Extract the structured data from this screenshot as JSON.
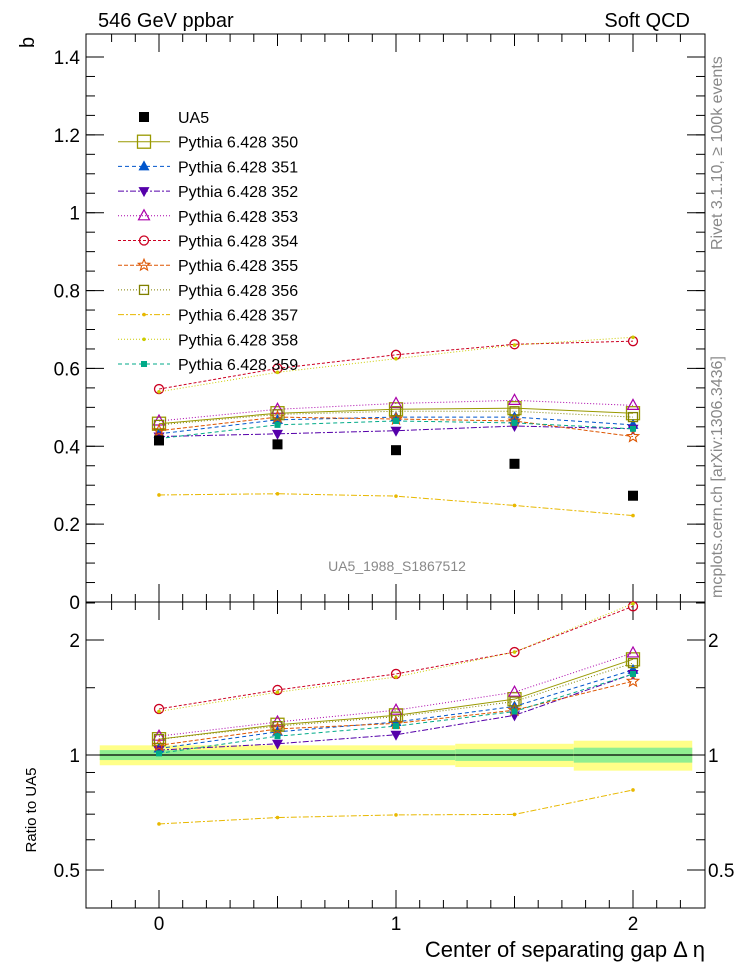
{
  "header": {
    "left": "546 GeV ppbar",
    "right": "Soft QCD"
  },
  "side_text": {
    "top": "Rivet 3.1.10, ≥ 100k events",
    "bottom": "mcplots.cern.ch [arXiv:1306.3436]"
  },
  "watermark": "UA5_1988_S1867512",
  "chart_data": [
    {
      "type": "line",
      "panel": "main",
      "ylabel": "b",
      "xlabel": "",
      "x": [
        0,
        0.5,
        1,
        1.5,
        2
      ],
      "xlim": [
        -0.3,
        2.3
      ],
      "ylim": [
        0,
        1.45
      ],
      "yticks": [
        0,
        0.2,
        0.4,
        0.6,
        0.8,
        1,
        1.2,
        1.4
      ],
      "ytick_labels": [
        "0",
        "0.2",
        "0.4",
        "0.6",
        "0.8",
        "1",
        "1.2",
        "1.4"
      ],
      "legend_position": "top-left",
      "data_series": {
        "name": "UA5",
        "color": "#000000",
        "values": [
          0.415,
          0.405,
          0.39,
          0.355,
          0.273
        ]
      },
      "series": [
        {
          "name": "Pythia 6.428 350",
          "color": "#999900",
          "marker": "square-open-large",
          "dash": "",
          "values": [
            0.458,
            0.485,
            0.495,
            0.498,
            0.485
          ]
        },
        {
          "name": "Pythia 6.428 351",
          "color": "#0055cc",
          "marker": "triangle-up-filled",
          "dash": "4,3",
          "values": [
            0.432,
            0.468,
            0.475,
            0.475,
            0.455
          ]
        },
        {
          "name": "Pythia 6.428 352",
          "color": "#5500aa",
          "marker": "triangle-down-filled",
          "dash": "6,2,2,2",
          "values": [
            0.425,
            0.432,
            0.44,
            0.452,
            0.445
          ]
        },
        {
          "name": "Pythia 6.428 353",
          "color": "#aa00aa",
          "marker": "triangle-up-open",
          "dash": "1,2",
          "values": [
            0.465,
            0.495,
            0.51,
            0.518,
            0.505
          ]
        },
        {
          "name": "Pythia 6.428 354",
          "color": "#cc0022",
          "marker": "circle-open",
          "dash": "3,2",
          "values": [
            0.547,
            0.6,
            0.635,
            0.662,
            0.67
          ]
        },
        {
          "name": "Pythia 6.428 355",
          "color": "#dd5500",
          "marker": "star-open",
          "dash": "4,2",
          "values": [
            0.44,
            0.475,
            0.47,
            0.465,
            0.425
          ]
        },
        {
          "name": "Pythia 6.428 356",
          "color": "#808000",
          "marker": "square-open",
          "dash": "1,2",
          "values": [
            0.455,
            0.482,
            0.49,
            0.49,
            0.475
          ]
        },
        {
          "name": "Pythia 6.428 357",
          "color": "#e8b800",
          "marker": "dot",
          "dash": "6,2,2,2",
          "values": [
            0.275,
            0.278,
            0.272,
            0.248,
            0.222
          ]
        },
        {
          "name": "Pythia 6.428 358",
          "color": "#cccc00",
          "marker": "dot",
          "dash": "1,2",
          "values": [
            0.54,
            0.59,
            0.625,
            0.66,
            0.68
          ]
        },
        {
          "name": "Pythia 6.428 359",
          "color": "#00aa88",
          "marker": "square-filled-small",
          "dash": "4,3",
          "values": [
            0.42,
            0.455,
            0.465,
            0.46,
            0.445
          ]
        }
      ]
    },
    {
      "type": "line",
      "panel": "ratio",
      "ylabel": "Ratio to UA5",
      "xlabel": "Center of separating gap Δ η",
      "x": [
        0,
        0.5,
        1,
        1.5,
        2
      ],
      "xlim": [
        -0.3,
        2.3
      ],
      "ylim": [
        0.4,
        2.5
      ],
      "log_scale_y": true,
      "xticks": [
        0,
        0.5,
        1,
        1.5,
        2
      ],
      "xtick_labels": [
        "0",
        "1",
        "2"
      ],
      "ytick_labels": [
        "0.5",
        "1",
        "2"
      ],
      "bands": {
        "inner_color": "#90ee90",
        "outer_color": "#ffff88",
        "x_edges": [
          -0.25,
          1.25,
          1.75,
          2.25
        ],
        "inner_halfwidth": [
          0.03,
          0.035,
          0.045
        ],
        "outer_halfwidth": [
          0.06,
          0.07,
          0.09
        ]
      },
      "series": [
        {
          "name": "Pythia 6.428 350",
          "values": [
            1.1,
            1.2,
            1.27,
            1.4,
            1.78
          ]
        },
        {
          "name": "Pythia 6.428 351",
          "values": [
            1.04,
            1.15,
            1.22,
            1.34,
            1.67
          ]
        },
        {
          "name": "Pythia 6.428 352",
          "values": [
            1.03,
            1.07,
            1.13,
            1.27,
            1.63
          ]
        },
        {
          "name": "Pythia 6.428 353",
          "values": [
            1.12,
            1.22,
            1.31,
            1.46,
            1.85
          ]
        },
        {
          "name": "Pythia 6.428 354",
          "values": [
            1.32,
            1.48,
            1.63,
            1.86,
            2.45
          ]
        },
        {
          "name": "Pythia 6.428 355",
          "values": [
            1.06,
            1.17,
            1.21,
            1.31,
            1.56
          ]
        },
        {
          "name": "Pythia 6.428 356",
          "values": [
            1.1,
            1.19,
            1.26,
            1.38,
            1.74
          ]
        },
        {
          "name": "Pythia 6.428 357",
          "values": [
            0.66,
            0.686,
            0.697,
            0.699,
            0.81
          ]
        },
        {
          "name": "Pythia 6.428 358",
          "values": [
            1.3,
            1.46,
            1.6,
            1.86,
            2.49
          ]
        },
        {
          "name": "Pythia 6.428 359",
          "values": [
            1.01,
            1.12,
            1.19,
            1.3,
            1.63
          ]
        }
      ]
    }
  ]
}
